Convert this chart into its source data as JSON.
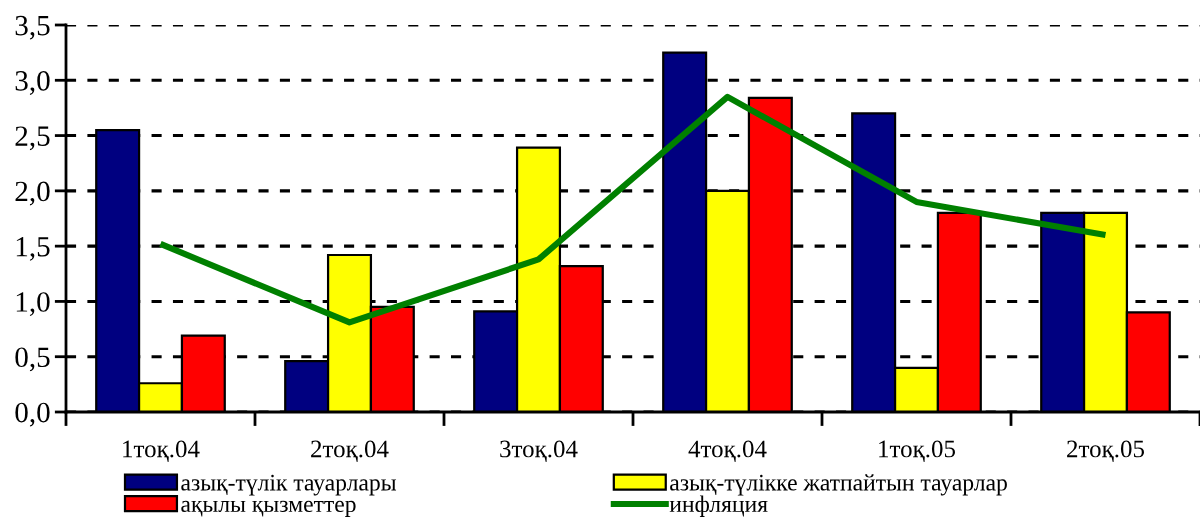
{
  "chart_data": {
    "type": "bar",
    "categories": [
      "1тоқ.04",
      "2тоқ.04",
      "3тоқ.04",
      "4тоқ.04",
      "1тоқ.05",
      "2тоқ.05"
    ],
    "series": [
      {
        "name": "азық-түлік тауарлары",
        "color": "#000080",
        "values": [
          2.55,
          0.46,
          0.91,
          3.25,
          2.7,
          1.8
        ]
      },
      {
        "name": "азық-түлікке жатпайтын тауарлар",
        "color": "#ffff00",
        "values": [
          0.26,
          1.42,
          2.39,
          2.0,
          0.4,
          1.8
        ]
      },
      {
        "name": "ақылы қызметтер",
        "color": "#ff0000",
        "values": [
          0.69,
          0.95,
          1.32,
          2.84,
          1.8,
          0.9
        ]
      },
      {
        "name": "инфляция",
        "type": "line",
        "color": "#008000",
        "values": [
          1.52,
          0.81,
          1.38,
          2.85,
          1.9,
          1.6
        ]
      }
    ],
    "ylim": [
      0,
      3.5
    ],
    "yticks": [
      {
        "value": 0,
        "label": "0,0"
      },
      {
        "value": 0.5,
        "label": "0,5"
      },
      {
        "value": 1,
        "label": "1,0"
      },
      {
        "value": 1.5,
        "label": "1,5"
      },
      {
        "value": 2,
        "label": "2,0"
      },
      {
        "value": 2.5,
        "label": "2,5"
      },
      {
        "value": 3,
        "label": "3,0"
      },
      {
        "value": 3.5,
        "label": "3,5"
      }
    ],
    "grid": "y",
    "legend": "bottom",
    "line_style": "solid",
    "marker": "none"
  }
}
